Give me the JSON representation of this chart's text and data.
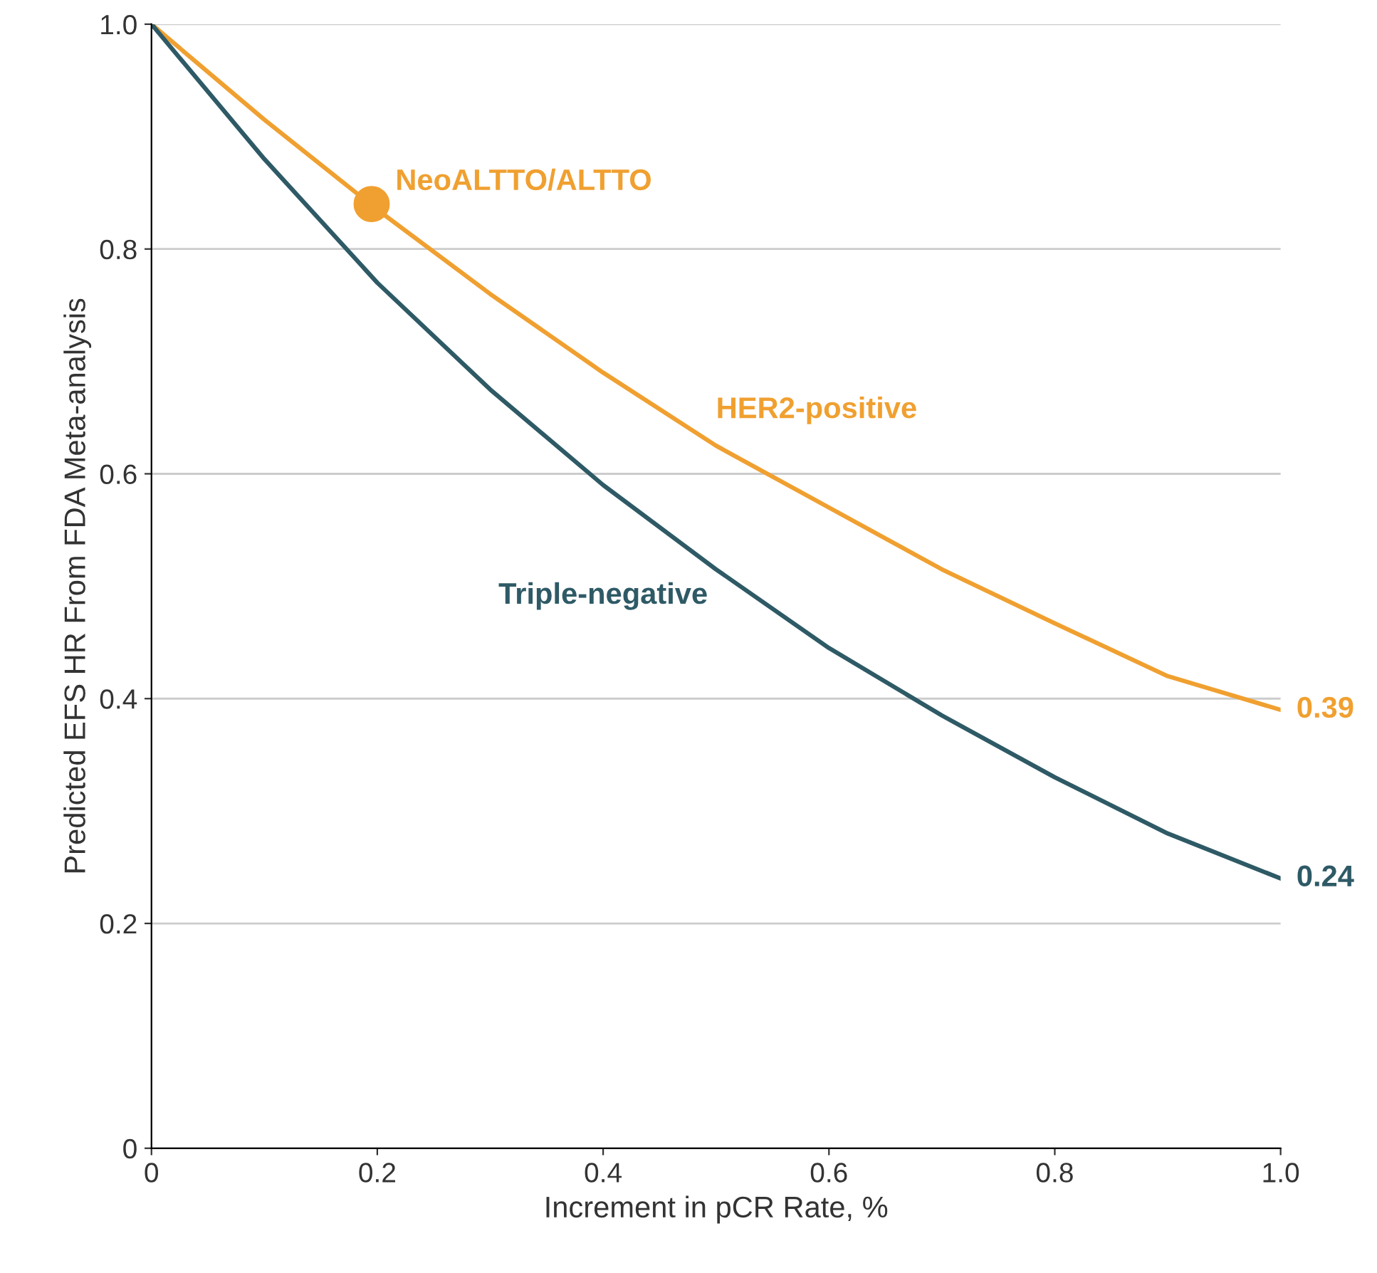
{
  "chart_data": {
    "type": "line",
    "xlabel": "Increment in pCR Rate, %",
    "ylabel": "Predicted EFS HR From FDA Meta-analysis",
    "x": [
      0,
      0.1,
      0.2,
      0.3,
      0.4,
      0.5,
      0.6,
      0.7,
      0.8,
      0.9,
      1.0
    ],
    "series": [
      {
        "name": "HER2-positive",
        "color": "#f0a030",
        "values": [
          1,
          0.915,
          0.835,
          0.76,
          0.69,
          0.625,
          0.57,
          0.515,
          0.467,
          0.42,
          0.39
        ],
        "value_labels": [
          null,
          null,
          null,
          null,
          null,
          null,
          null,
          null,
          null,
          null,
          "0.39"
        ]
      },
      {
        "name": "Triple-negative",
        "color": "#2e5a66",
        "values": [
          1,
          0.88,
          0.77,
          0.675,
          0.59,
          0.515,
          0.445,
          0.385,
          0.33,
          0.28,
          0.24
        ],
        "value_labels": [
          null,
          null,
          null,
          null,
          null,
          null,
          null,
          null,
          null,
          null,
          "0.24"
        ]
      },
      {
        "name": "NeoALTTO/ALTTO",
        "type": "scatter",
        "color": "#f0a030",
        "x": [
          0.195
        ],
        "values": [
          0.84
        ]
      }
    ],
    "xlim": [
      0,
      1.0
    ],
    "xticks": [
      0,
      0.2,
      0.4,
      0.6,
      0.8,
      {
        "value": 1.0,
        "label": "1.0"
      }
    ],
    "ylim": [
      0,
      1.0
    ],
    "yticks": [
      0,
      0.2,
      0.4,
      0.6,
      0.8,
      {
        "value": 1.0,
        "label": "1.0"
      }
    ],
    "grid": "y",
    "legend": false,
    "line_style": "solid"
  }
}
